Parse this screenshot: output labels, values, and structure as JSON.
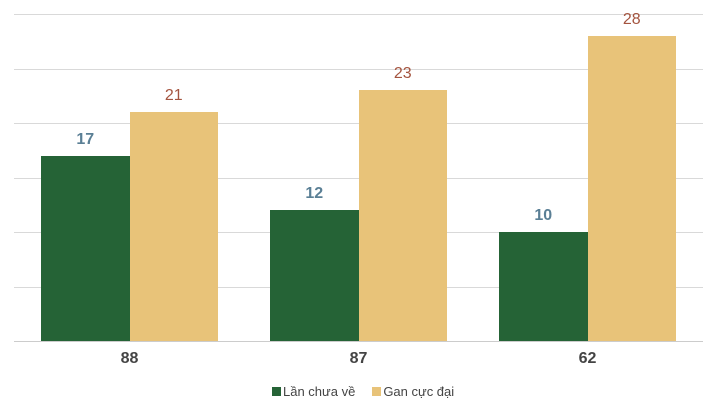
{
  "chart_data": {
    "type": "bar",
    "title": "",
    "xlabel": "",
    "ylabel": "",
    "categories": [
      "88",
      "87",
      "62"
    ],
    "series": [
      {
        "name": "Lần chưa về",
        "values": [
          17,
          12,
          10
        ],
        "color": "#256336",
        "label_color": "#5a7f95"
      },
      {
        "name": "Gan cực đại",
        "values": [
          21,
          23,
          28
        ],
        "color": "#e8c379",
        "label_color": "#a4543f"
      }
    ],
    "ylim": [
      0,
      30
    ],
    "ytick_step": 5,
    "grid": true,
    "y_axis_labels_visible": false,
    "legend_position": "bottom",
    "data_labels": true
  },
  "legend": {
    "items": [
      {
        "label": "Lần chưa về",
        "color": "#256336"
      },
      {
        "label": "Gan cực đại",
        "color": "#e8c379"
      }
    ]
  }
}
